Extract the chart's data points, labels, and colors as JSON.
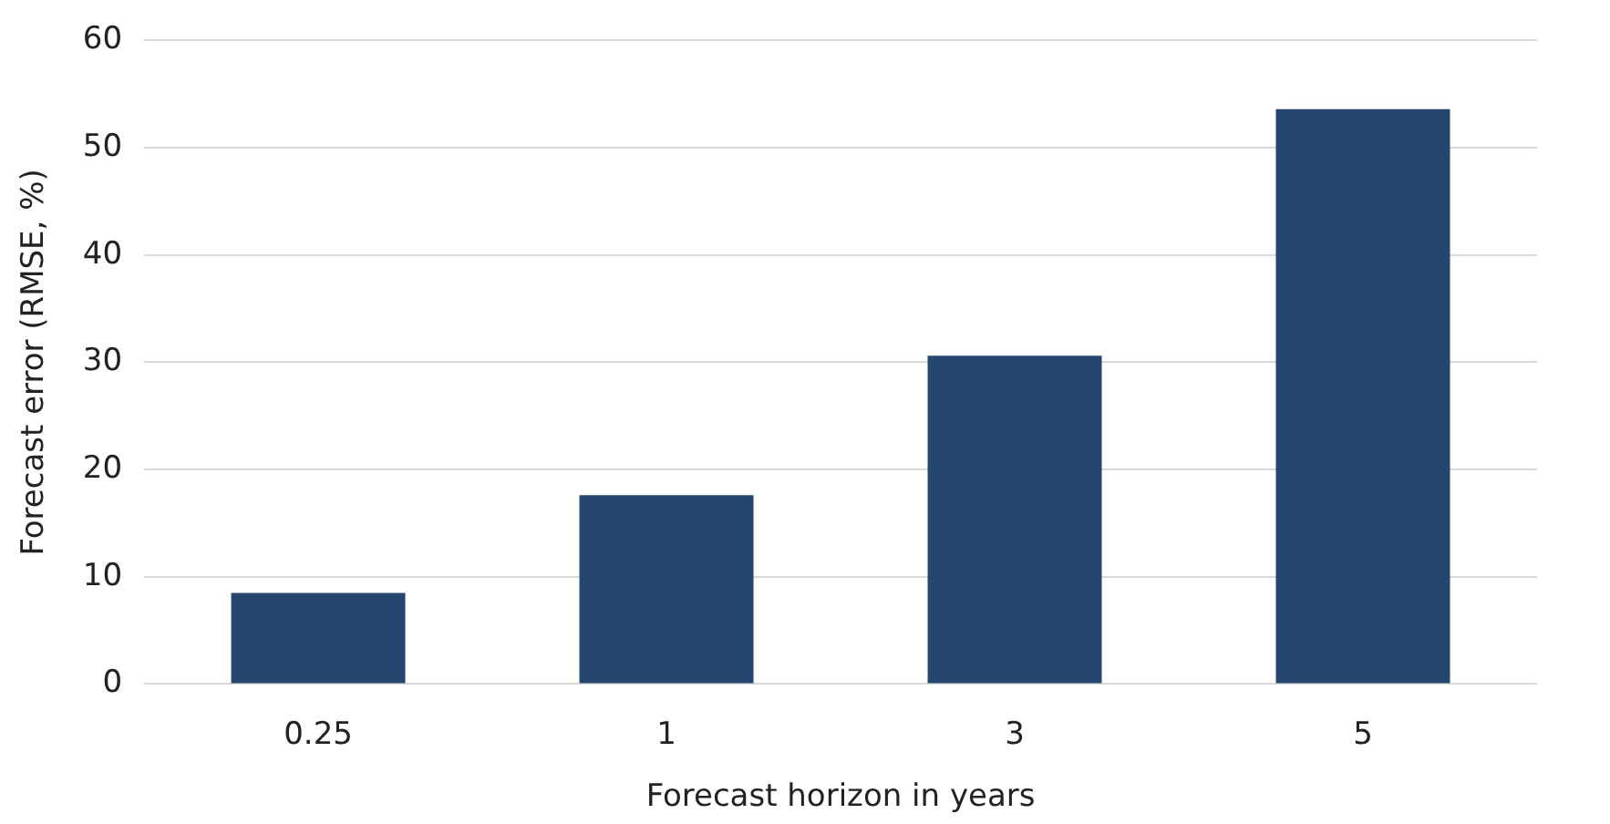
{
  "chart_data": {
    "type": "bar",
    "xlabel": "Forecast horizon in years",
    "ylabel": "Forecast error (RMSE, %)",
    "categories": [
      "0.25",
      "1",
      "3",
      "5"
    ],
    "values": [
      8.5,
      17.6,
      30.6,
      53.6
    ],
    "color": "#24466f",
    "ylim": [
      0,
      60
    ],
    "yticks": [
      0,
      10,
      20,
      30,
      40,
      50,
      60
    ],
    "grid": "y",
    "legend": false
  }
}
